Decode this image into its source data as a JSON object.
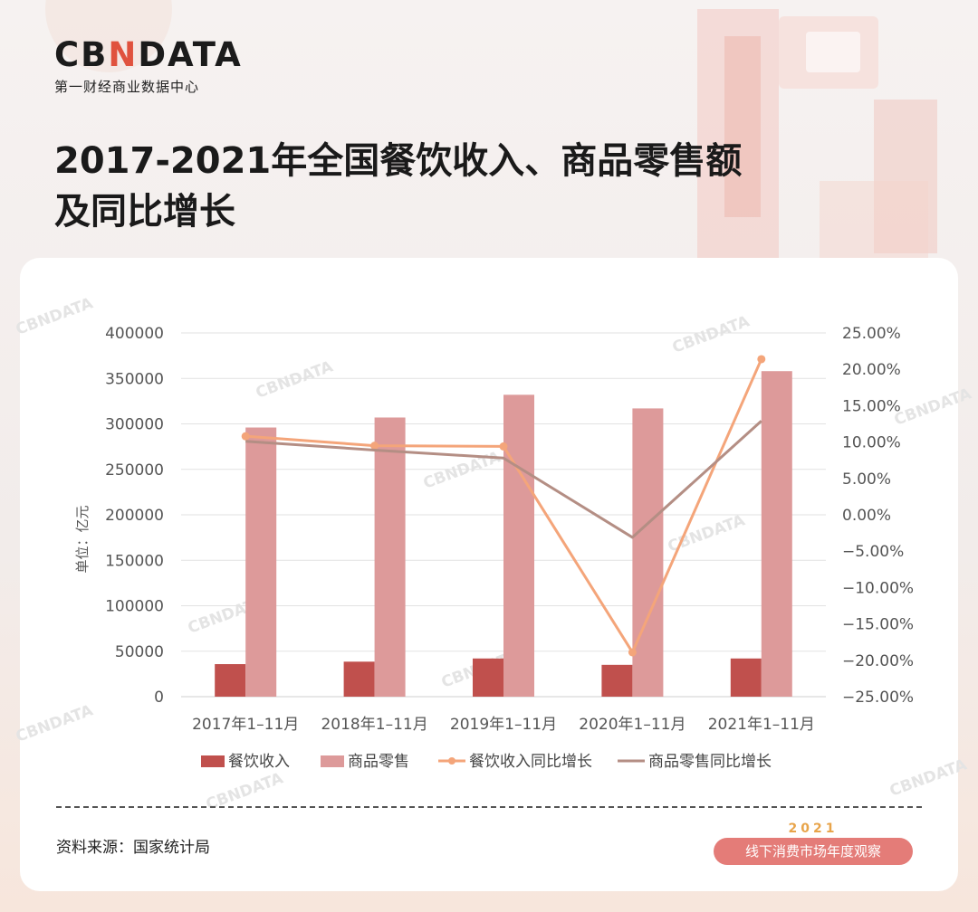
{
  "brand": {
    "name_part1": "CB",
    "name_mark": "N",
    "name_part2": "DATA",
    "tagline": "第一财经商业数据中心"
  },
  "title": {
    "line1": "2017-2021年全国餐饮收入、商品零售额",
    "line2": "及同比增长"
  },
  "footer": {
    "source": "资料来源：国家统计局",
    "badge_year": "2021",
    "badge_text": "线下消费市场年度观察"
  },
  "watermark": "CBNDATA",
  "colors": {
    "bar_dining": "#c0504d",
    "bar_retail": "#dd9a9a",
    "line_dining": "#f4a57a",
    "line_retail": "#b48e84",
    "accent": "#e0523e"
  },
  "chart_data": {
    "type": "bar",
    "categories": [
      "2017年1–11月",
      "2018年1–11月",
      "2019年1–11月",
      "2020年1–11月",
      "2021年1–11月"
    ],
    "y_left": {
      "label": "单位：亿元",
      "lim": [
        0,
        400000
      ],
      "ticks": [
        "400000",
        "350000",
        "300000",
        "250000",
        "200000",
        "150000",
        "100000",
        "50000",
        "0"
      ]
    },
    "y_right": {
      "lim": [
        -25,
        25
      ],
      "ticks": [
        "25.00%",
        "20.00%",
        "15.00%",
        "10.00%",
        "5.00%",
        "0.00%",
        "−5.00%",
        "−10.00%",
        "−15.00%",
        "−20.00%",
        "−25.00%"
      ]
    },
    "series": [
      {
        "name": "餐饮收入",
        "type": "bar",
        "axis": "left",
        "values": [
          35800,
          38500,
          42000,
          35000,
          42000
        ]
      },
      {
        "name": "商品零售",
        "type": "bar",
        "axis": "left",
        "values": [
          296000,
          307000,
          332000,
          317000,
          358000
        ]
      },
      {
        "name": "餐饮收入同比增长",
        "type": "line",
        "axis": "right",
        "markers": true,
        "values": [
          10.8,
          9.5,
          9.4,
          -18.9,
          21.4
        ]
      },
      {
        "name": "商品零售同比增长",
        "type": "line",
        "axis": "right",
        "markers": false,
        "values": [
          10.1,
          8.9,
          7.8,
          -3.1,
          12.9
        ]
      }
    ],
    "legend": "bottom",
    "grid": true
  }
}
